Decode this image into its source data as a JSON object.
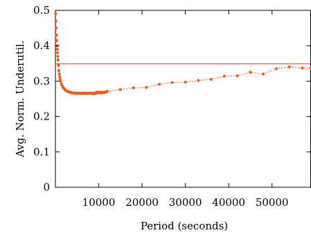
{
  "chart_data": {
    "type": "line",
    "xlabel": "Period (seconds)",
    "ylabel": "Avg. Norm. Underutil.",
    "xlim": [
      0,
      59000
    ],
    "ylim": [
      0,
      0.5
    ],
    "x_ticks": [
      10000,
      20000,
      30000,
      40000,
      50000
    ],
    "y_ticks": [
      0,
      0.1,
      0.2,
      0.3,
      0.4,
      0.5
    ],
    "grid": false,
    "legend": "none",
    "colors": {
      "series": "#f05a1a",
      "reference": "#e8513a"
    },
    "reference_line": {
      "y": 0.349
    },
    "series": [
      {
        "x": [
          60,
          120,
          180,
          240,
          300,
          360,
          420,
          480,
          540,
          600,
          700,
          800,
          900,
          1000,
          1100,
          1200,
          1400,
          1600,
          1800,
          2000,
          2200,
          2400,
          2600,
          2800,
          3000,
          3200,
          3400,
          3600,
          3800,
          4000,
          4200,
          4400,
          4600,
          4800,
          5000,
          5200,
          5400,
          5600,
          5800,
          6000,
          6200,
          6400,
          6600,
          6800,
          7000,
          7200,
          7400,
          7600,
          7800,
          8000,
          8200,
          8400,
          8600,
          8800,
          9000,
          9200,
          9400,
          9600,
          9800,
          10000,
          10200,
          10400,
          10600,
          10800,
          11000,
          11200,
          11400,
          11600,
          11800,
          12000,
          15000,
          18000,
          21000,
          24000,
          27000,
          30000,
          33000,
          36000,
          39000,
          42000,
          45000,
          48000,
          51000,
          54000,
          57000,
          59000
        ],
        "values": [
          0.49,
          0.47,
          0.45,
          0.43,
          0.415,
          0.4,
          0.39,
          0.38,
          0.37,
          0.36,
          0.345,
          0.33,
          0.32,
          0.312,
          0.305,
          0.3,
          0.292,
          0.286,
          0.282,
          0.279,
          0.276,
          0.274,
          0.272,
          0.271,
          0.27,
          0.269,
          0.268,
          0.268,
          0.267,
          0.267,
          0.266,
          0.266,
          0.266,
          0.265,
          0.266,
          0.265,
          0.266,
          0.265,
          0.265,
          0.266,
          0.265,
          0.266,
          0.266,
          0.265,
          0.266,
          0.265,
          0.265,
          0.266,
          0.266,
          0.266,
          0.266,
          0.265,
          0.266,
          0.264,
          0.266,
          0.265,
          0.268,
          0.266,
          0.269,
          0.267,
          0.268,
          0.266,
          0.269,
          0.267,
          0.268,
          0.268,
          0.268,
          0.269,
          0.27,
          0.271,
          0.276,
          0.281,
          0.282,
          0.291,
          0.296,
          0.297,
          0.302,
          0.305,
          0.314,
          0.315,
          0.325,
          0.32,
          0.335,
          0.34,
          0.337,
          0.337
        ]
      }
    ]
  }
}
